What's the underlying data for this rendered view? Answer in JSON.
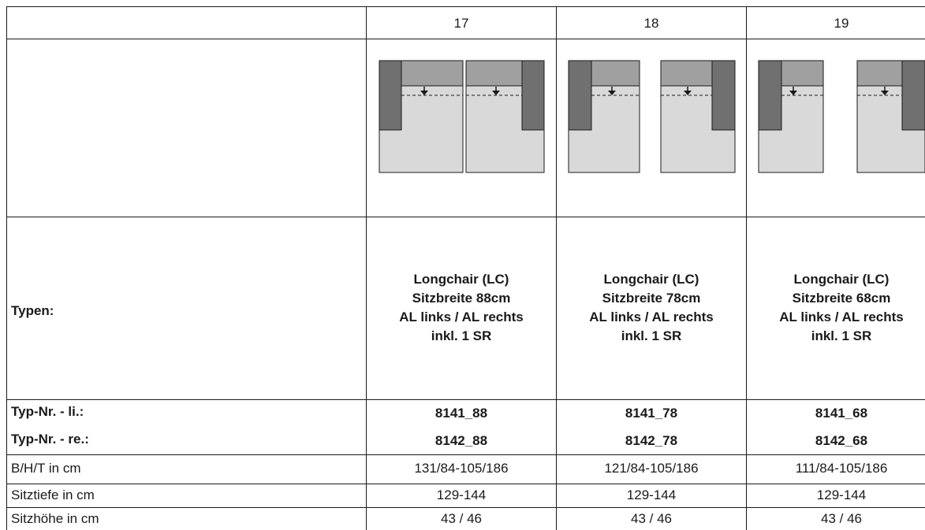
{
  "columns": [
    {
      "number": "17",
      "typen": [
        "Longchair (LC)",
        "Sitzbreite 88cm",
        "AL links / AL rechts",
        "inkl. 1 SR"
      ],
      "typ_nr_li": "8141_88",
      "typ_nr_re": "8142_88",
      "bht": "131/84-105/186",
      "sitztiefe": "129-144",
      "sitzhoehe": "43 / 46"
    },
    {
      "number": "18",
      "typen": [
        "Longchair (LC)",
        "Sitzbreite 78cm",
        "AL links / AL rechts",
        "inkl. 1 SR"
      ],
      "typ_nr_li": "8141_78",
      "typ_nr_re": "8142_78",
      "bht": "121/84-105/186",
      "sitztiefe": "129-144",
      "sitzhoehe": "43 / 46"
    },
    {
      "number": "19",
      "typen": [
        "Longchair (LC)",
        "Sitzbreite 68cm",
        "AL links / AL rechts",
        "inkl. 1 SR"
      ],
      "typ_nr_li": "8141_68",
      "typ_nr_re": "8142_68",
      "bht": "111/84-105/186",
      "sitztiefe": "129-144",
      "sitzhoehe": "43 / 46"
    }
  ],
  "row_labels": {
    "typen": "Typen:",
    "typ_nr_li": "Typ-Nr. - li.:",
    "typ_nr_re": "Typ-Nr. - re.:",
    "bht": "B/H/T in cm",
    "sitztiefe": "Sitztiefe in cm",
    "sitzhoehe": "Sitzhöhe in cm"
  },
  "colors": {
    "armrest": "#707070",
    "backrest": "#a0a0a0",
    "seat": "#d9d9d9",
    "lines": "#1a1a1a"
  }
}
